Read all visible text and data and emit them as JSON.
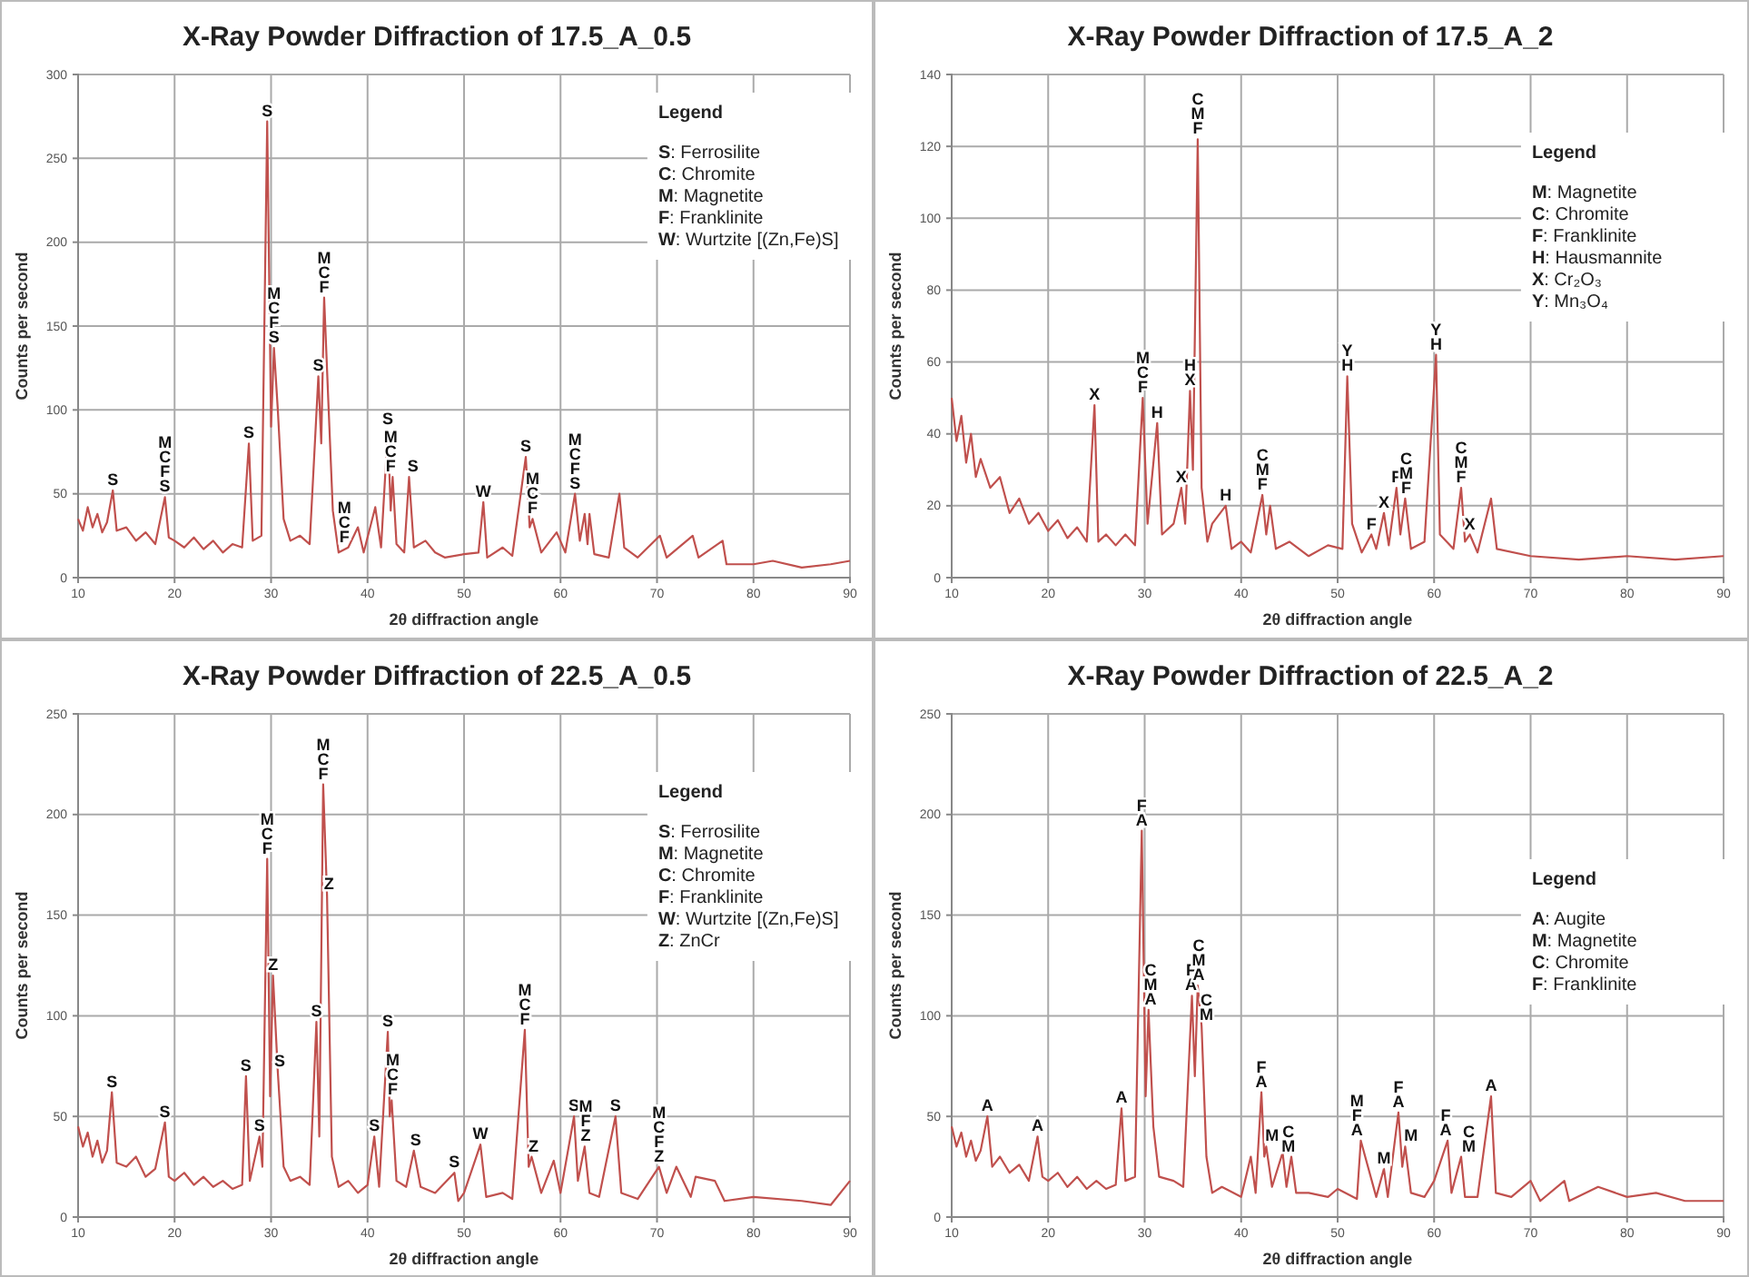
{
  "chart_data": [
    {
      "type": "line",
      "title": "X-Ray Powder Diffraction of 17.5_A_0.5",
      "xlabel": "2θ diffraction angle",
      "ylabel": "Counts per second",
      "color": "#c0504d",
      "grid": true,
      "xlim": [
        10,
        90
      ],
      "xticks": [
        10,
        20,
        30,
        40,
        50,
        60,
        70,
        80,
        90
      ],
      "ylim": [
        0,
        300
      ],
      "yticks": [
        0,
        50,
        100,
        150,
        200,
        250,
        300
      ],
      "x": [
        10,
        10.5,
        11,
        11.5,
        12,
        12.5,
        13,
        13.6,
        14,
        15,
        16,
        17,
        18,
        19,
        19.4,
        20,
        21,
        22,
        23,
        24,
        25,
        26,
        27,
        27.7,
        28.1,
        29,
        29.6,
        30,
        30.3,
        30.7,
        31.3,
        32,
        33,
        34,
        34.9,
        35.2,
        35.5,
        35.9,
        36.4,
        37,
        38,
        39,
        39.6,
        40.8,
        41.4,
        42.1,
        42.4,
        42.6,
        43,
        43.8,
        44.3,
        44.8,
        46,
        47,
        48,
        50,
        51.5,
        52,
        52.4,
        54,
        55,
        56.4,
        56.8,
        57.1,
        58,
        59.6,
        60.5,
        61.5,
        62,
        62.5,
        62.8,
        63,
        63.5,
        65,
        66.1,
        66.6,
        68,
        70.3,
        71,
        73.7,
        74.3,
        76.8,
        77.2,
        80,
        82,
        85,
        88,
        90
      ],
      "values": [
        35,
        28,
        42,
        30,
        38,
        27,
        33,
        52,
        28,
        30,
        22,
        27,
        20,
        48,
        24,
        22,
        18,
        24,
        17,
        22,
        15,
        20,
        18,
        80,
        22,
        25,
        272,
        90,
        137,
        100,
        35,
        22,
        25,
        20,
        120,
        80,
        167,
        110,
        40,
        15,
        18,
        30,
        15,
        42,
        18,
        88,
        40,
        60,
        20,
        15,
        60,
        18,
        22,
        15,
        12,
        14,
        15,
        45,
        12,
        18,
        13,
        72,
        30,
        35,
        15,
        27,
        15,
        50,
        22,
        38,
        20,
        38,
        14,
        12,
        50,
        18,
        12,
        25,
        12,
        25,
        12,
        22,
        8,
        8,
        10,
        6,
        8,
        10
      ],
      "annotations": [
        {
          "text": "S",
          "x": 13.6,
          "y": 52
        },
        {
          "text": "MCFS",
          "x": 19,
          "y": 48
        },
        {
          "text": "S",
          "x": 27.7,
          "y": 80
        },
        {
          "text": "S",
          "x": 29.6,
          "y": 272
        },
        {
          "text": "MCFS",
          "x": 30.3,
          "y": 137
        },
        {
          "text": "S",
          "x": 34.9,
          "y": 120
        },
        {
          "text": "MCF",
          "x": 35.5,
          "y": 167
        },
        {
          "text": "MCF",
          "x": 37.6,
          "y": 18
        },
        {
          "text": "S",
          "x": 42.1,
          "y": 88
        },
        {
          "text": "MCF",
          "x": 42.4,
          "y": 60
        },
        {
          "text": "S",
          "x": 44.7,
          "y": 60
        },
        {
          "text": "W",
          "x": 52,
          "y": 45
        },
        {
          "text": "S",
          "x": 56.4,
          "y": 72
        },
        {
          "text": "MCF",
          "x": 57.1,
          "y": 35
        },
        {
          "text": "MCFS",
          "x": 61.5,
          "y": 50
        },
        "Legend",
        "S: Ferrosilite",
        "C: Chromite",
        "M: Magnetite",
        "F: Franklinite",
        "W: Wurtzite [(Zn,Fe)S]"
      ]
    },
    {
      "type": "line",
      "title": "X-Ray Powder Diffraction of 17.5_A_2",
      "xlabel": "2θ diffraction angle",
      "ylabel": "Counts per second",
      "color": "#c0504d",
      "grid": true,
      "xlim": [
        10,
        90
      ],
      "xticks": [
        10,
        20,
        30,
        40,
        50,
        60,
        70,
        80,
        90
      ],
      "ylim": [
        0,
        140
      ],
      "yticks": [
        0,
        20,
        40,
        60,
        80,
        100,
        120,
        140
      ],
      "x": [
        10,
        10.5,
        11,
        11.5,
        12,
        12.5,
        13,
        14,
        15,
        16,
        17,
        18,
        19,
        20,
        21,
        22,
        23,
        24,
        24.8,
        25.2,
        26,
        27,
        28,
        29,
        29.8,
        30.3,
        31.3,
        31.8,
        33,
        33.8,
        34.2,
        34.7,
        35,
        35.5,
        35.9,
        36.5,
        37,
        38.4,
        39,
        40,
        41,
        42.2,
        42.6,
        43,
        43.6,
        45,
        47,
        49,
        50.5,
        51,
        51.5,
        52.5,
        53.5,
        54,
        54.8,
        55.3,
        56.1,
        56.5,
        57,
        57.6,
        59,
        60.2,
        60.6,
        62,
        62.8,
        63.2,
        63.7,
        64.5,
        65.9,
        66.5,
        70,
        75,
        80,
        85,
        90
      ],
      "values": [
        50,
        38,
        45,
        32,
        40,
        28,
        33,
        25,
        28,
        18,
        22,
        15,
        18,
        13,
        16,
        11,
        14,
        10,
        48,
        10,
        12,
        9,
        12,
        9,
        50,
        15,
        43,
        12,
        15,
        25,
        15,
        52,
        30,
        122,
        25,
        10,
        15,
        20,
        8,
        10,
        7,
        23,
        12,
        20,
        8,
        10,
        6,
        9,
        8,
        56,
        15,
        7,
        12,
        8,
        18,
        9,
        25,
        12,
        22,
        8,
        10,
        62,
        12,
        8,
        25,
        10,
        12,
        7,
        22,
        8,
        6,
        5,
        6,
        5,
        6
      ],
      "annotations": [
        {
          "text": "X",
          "x": 24.8,
          "y": 48
        },
        {
          "text": "MCF",
          "x": 29.8,
          "y": 50
        },
        {
          "text": "H",
          "x": 31.3,
          "y": 43
        },
        {
          "text": "X",
          "x": 33.8,
          "y": 25
        },
        {
          "text": "HX",
          "x": 34.7,
          "y": 52
        },
        {
          "text": "CMF",
          "x": 35.5,
          "y": 122
        },
        {
          "text": "H",
          "x": 38.4,
          "y": 20
        },
        {
          "text": "CMF",
          "x": 42.2,
          "y": 23
        },
        {
          "text": "YH",
          "x": 51,
          "y": 56
        },
        {
          "text": "F",
          "x": 53.5,
          "y": 12
        },
        {
          "text": "X",
          "x": 54.8,
          "y": 18
        },
        {
          "text": "F",
          "x": 56.1,
          "y": 25
        },
        {
          "text": "CMF",
          "x": 57.1,
          "y": 22
        },
        {
          "text": "YH",
          "x": 60.2,
          "y": 62
        },
        {
          "text": "CMF",
          "x": 62.8,
          "y": 25
        },
        {
          "text": "X",
          "x": 63.7,
          "y": 12
        },
        "Legend",
        "M: Magnetite",
        "C: Chromite",
        "F: Franklinite",
        "H: Hausmannite",
        "X: Cr₂O₃",
        "Y: Mn₃O₄"
      ]
    },
    {
      "type": "line",
      "title": "X-Ray Powder Diffraction of 22.5_A_0.5",
      "xlabel": "2θ diffraction angle",
      "ylabel": "Counts per second",
      "color": "#c0504d",
      "grid": true,
      "xlim": [
        10,
        90
      ],
      "xticks": [
        10,
        20,
        30,
        40,
        50,
        60,
        70,
        80,
        90
      ],
      "ylim": [
        0,
        250
      ],
      "yticks": [
        0,
        50,
        100,
        150,
        200,
        250
      ],
      "x": [
        10,
        10.5,
        11,
        11.5,
        12,
        12.5,
        13,
        13.5,
        14,
        15,
        16,
        17,
        18,
        19,
        19.4,
        20,
        21,
        22,
        23,
        24,
        25,
        26,
        27,
        27.4,
        27.8,
        28.8,
        29.1,
        29.6,
        29.9,
        30.2,
        30.7,
        31.3,
        32,
        33,
        34,
        34.7,
        35,
        35.4,
        35.8,
        36.3,
        37,
        38,
        39,
        40,
        40.7,
        41.2,
        42.1,
        42.3,
        42.5,
        43,
        44,
        44.8,
        45.5,
        47,
        49,
        49.4,
        50,
        51.7,
        52.3,
        54,
        55,
        56.3,
        56.7,
        57,
        58,
        59.3,
        60,
        61.4,
        61.8,
        62.5,
        63,
        64,
        65.7,
        66.3,
        68,
        70.2,
        71,
        72,
        73.5,
        74,
        76,
        77,
        80,
        85,
        88,
        90
      ],
      "values": [
        45,
        35,
        42,
        30,
        38,
        27,
        33,
        62,
        27,
        25,
        30,
        20,
        24,
        47,
        20,
        18,
        22,
        16,
        20,
        15,
        18,
        14,
        16,
        70,
        18,
        40,
        25,
        178,
        60,
        120,
        72,
        25,
        18,
        20,
        16,
        97,
        40,
        215,
        160,
        30,
        15,
        18,
        12,
        16,
        40,
        15,
        92,
        50,
        58,
        18,
        15,
        33,
        15,
        12,
        22,
        8,
        12,
        36,
        10,
        12,
        9,
        93,
        25,
        30,
        12,
        28,
        12,
        50,
        18,
        35,
        12,
        10,
        50,
        12,
        9,
        25,
        12,
        25,
        10,
        20,
        18,
        8,
        10,
        8,
        6,
        18
      ],
      "annotations": [
        {
          "text": "S",
          "x": 13.5,
          "y": 62
        },
        {
          "text": "S",
          "x": 19,
          "y": 47
        },
        {
          "text": "S",
          "x": 27.4,
          "y": 70
        },
        {
          "text": "S",
          "x": 28.8,
          "y": 40
        },
        {
          "text": "MCF",
          "x": 29.6,
          "y": 178
        },
        {
          "text": "Z",
          "x": 30.2,
          "y": 120
        },
        {
          "text": "S",
          "x": 30.9,
          "y": 72
        },
        {
          "text": "S",
          "x": 34.7,
          "y": 97
        },
        {
          "text": "MCF",
          "x": 35.4,
          "y": 215
        },
        {
          "text": "Z",
          "x": 36,
          "y": 160
        },
        {
          "text": "S",
          "x": 40.7,
          "y": 40
        },
        {
          "text": "S",
          "x": 42.1,
          "y": 92
        },
        {
          "text": "MCF",
          "x": 42.6,
          "y": 58
        },
        {
          "text": "S",
          "x": 45,
          "y": 33
        },
        {
          "text": "S",
          "x": 49,
          "y": 22
        },
        {
          "text": "W",
          "x": 51.7,
          "y": 36
        },
        {
          "text": "MCF",
          "x": 56.3,
          "y": 93
        },
        {
          "text": "Z",
          "x": 57.2,
          "y": 30
        },
        {
          "text": "S",
          "x": 61.4,
          "y": 50
        },
        {
          "text": "MFZ",
          "x": 62.6,
          "y": 35
        },
        {
          "text": "S",
          "x": 65.7,
          "y": 50
        },
        {
          "text": "MCFZ",
          "x": 70.2,
          "y": 25
        },
        "Legend",
        "S: Ferrosilite",
        "M: Magnetite",
        "C: Chromite",
        "F: Franklinite",
        "W: Wurtzite [(Zn,Fe)S]",
        "Z: ZnCr"
      ]
    },
    {
      "type": "line",
      "title": "X-Ray Powder Diffraction of 22.5_A_2",
      "xlabel": "2θ diffraction angle",
      "ylabel": "Counts per second",
      "color": "#c0504d",
      "grid": true,
      "xlim": [
        10,
        90
      ],
      "xticks": [
        10,
        20,
        30,
        40,
        50,
        60,
        70,
        80,
        90
      ],
      "ylim": [
        0,
        250
      ],
      "yticks": [
        0,
        50,
        100,
        150,
        200,
        250
      ],
      "x": [
        10,
        10.5,
        11,
        11.5,
        12,
        12.5,
        13,
        13.7,
        14.2,
        15,
        16,
        17,
        18,
        18.9,
        19.4,
        20,
        21,
        22,
        23,
        24,
        25,
        26,
        27,
        27.6,
        28,
        29,
        29.7,
        30.1,
        30.4,
        30.9,
        31.5,
        33,
        34,
        34.9,
        35.2,
        35.5,
        35.9,
        36.4,
        37,
        38,
        40,
        41,
        41.5,
        42.1,
        42.4,
        42.6,
        43.2,
        44.3,
        44.7,
        45.2,
        45.7,
        47,
        49,
        50,
        52,
        52.4,
        54,
        54.8,
        55.2,
        56.3,
        56.7,
        57,
        57.6,
        59,
        60,
        61.4,
        61.8,
        62.8,
        63.2,
        64.5,
        65.9,
        66.4,
        68,
        70,
        71,
        73.5,
        74,
        77,
        80,
        83,
        86,
        90
      ],
      "values": [
        45,
        35,
        42,
        30,
        38,
        28,
        33,
        50,
        25,
        30,
        22,
        26,
        18,
        40,
        20,
        18,
        22,
        15,
        20,
        14,
        18,
        14,
        16,
        54,
        18,
        20,
        192,
        60,
        103,
        45,
        20,
        18,
        15,
        110,
        70,
        115,
        95,
        30,
        12,
        15,
        10,
        30,
        12,
        62,
        30,
        35,
        15,
        32,
        15,
        30,
        12,
        12,
        10,
        14,
        9,
        38,
        10,
        24,
        10,
        52,
        25,
        35,
        12,
        10,
        18,
        38,
        12,
        30,
        10,
        10,
        60,
        12,
        10,
        18,
        8,
        18,
        8,
        15,
        10,
        12,
        8,
        8
      ],
      "annotations": [
        {
          "text": "A",
          "x": 13.7,
          "y": 50
        },
        {
          "text": "A",
          "x": 18.9,
          "y": 40
        },
        {
          "text": "A",
          "x": 27.6,
          "y": 54
        },
        {
          "text": "FA",
          "x": 29.7,
          "y": 192
        },
        {
          "text": "CMA",
          "x": 30.6,
          "y": 103
        },
        {
          "text": "FA",
          "x": 34.8,
          "y": 110
        },
        {
          "text": "CMA",
          "x": 35.6,
          "y": 115
        },
        {
          "text": "CM",
          "x": 36.4,
          "y": 95
        },
        {
          "text": "FA",
          "x": 42.1,
          "y": 62
        },
        {
          "text": "M",
          "x": 43.2,
          "y": 35
        },
        {
          "text": "CM",
          "x": 44.9,
          "y": 30
        },
        {
          "text": "MFA",
          "x": 52,
          "y": 38
        },
        {
          "text": "M",
          "x": 54.8,
          "y": 24
        },
        {
          "text": "FA",
          "x": 56.3,
          "y": 52
        },
        {
          "text": "M",
          "x": 57.6,
          "y": 35
        },
        {
          "text": "FA",
          "x": 61.2,
          "y": 38
        },
        {
          "text": "CM",
          "x": 63.6,
          "y": 30
        },
        {
          "text": "A",
          "x": 65.9,
          "y": 60
        },
        "Legend",
        "A: Augite",
        "M: Magnetite",
        "C: Chromite",
        "F: Franklinite"
      ]
    }
  ]
}
